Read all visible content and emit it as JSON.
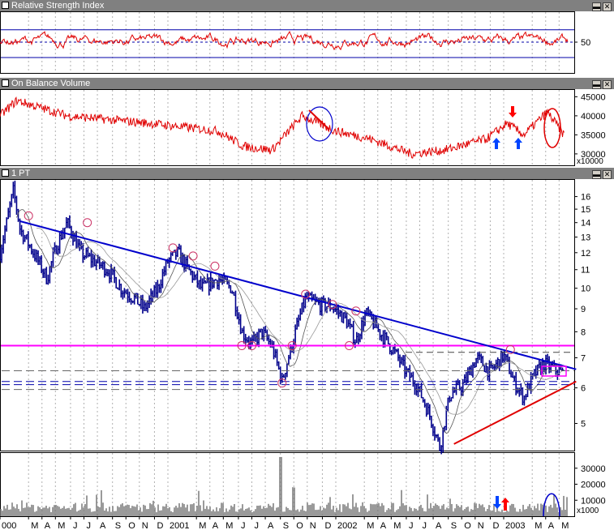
{
  "panels": {
    "rsi": {
      "title": "Relative Strength Index"
    },
    "obv": {
      "title": "On Balance Volume"
    },
    "price": {
      "title": "1 PT"
    }
  },
  "buttons": {
    "minimize": "▬",
    "close": "✕"
  },
  "colors": {
    "price_bar": "#00008b",
    "resistance_trendline": "#0000cc",
    "support_trendline": "#e00000",
    "horizontal_level": "#ff00ff",
    "rsi_line": "#e00000",
    "obv_line": "#e00000",
    "volume_bar": "#808080",
    "arrow_up": "#0044ff",
    "arrow_down": "#ff0000"
  },
  "chart_data": [
    {
      "type": "line",
      "panel": "rsi",
      "title": "Relative Strength Index",
      "y_ticks": [
        "50"
      ],
      "series": [
        {
          "name": "RSI"
        }
      ]
    },
    {
      "type": "line",
      "panel": "obv",
      "title": "On Balance Volume",
      "y_ticks": [
        "45000",
        "40000",
        "35000",
        "30000"
      ],
      "y_unit": "x10000",
      "series": [
        {
          "name": "OBV"
        }
      ]
    },
    {
      "type": "line",
      "panel": "price",
      "title": "1 PT",
      "y_scale": "log",
      "y_ticks": [
        "16",
        "15",
        "14",
        "13",
        "12",
        "11",
        "10",
        "9",
        "8",
        "7",
        "6",
        "5"
      ],
      "resistance_line": {
        "from": [
          0.12,
          14.1
        ],
        "to": [
          2.62,
          6.6
        ]
      },
      "support_line": {
        "from": [
          2.24,
          4.5
        ],
        "to": [
          2.62,
          6.2
        ]
      },
      "horizontal_level": 7.45
    },
    {
      "type": "bar",
      "panel": "volume",
      "y_ticks": [
        "30000",
        "20000",
        "10000"
      ],
      "y_unit": "x1000"
    }
  ],
  "x_axis": {
    "ticks": [
      {
        "label": "000",
        "pos": 0
      },
      {
        "label": "M",
        "pos": 0.17
      },
      {
        "label": "A",
        "pos": 0.25
      },
      {
        "label": "M",
        "pos": 0.33
      },
      {
        "label": "J",
        "pos": 0.42
      },
      {
        "label": "J",
        "pos": 0.5
      },
      {
        "label": "A",
        "pos": 0.58
      },
      {
        "label": "S",
        "pos": 0.67
      },
      {
        "label": "O",
        "pos": 0.75
      },
      {
        "label": "N",
        "pos": 0.83
      },
      {
        "label": "D",
        "pos": 0.92
      },
      {
        "label": "2001",
        "pos": 1.0
      },
      {
        "label": "M",
        "pos": 1.17
      },
      {
        "label": "A",
        "pos": 1.25
      },
      {
        "label": "M",
        "pos": 1.33
      },
      {
        "label": "J",
        "pos": 1.42
      },
      {
        "label": "J",
        "pos": 1.5
      },
      {
        "label": "A",
        "pos": 1.58
      },
      {
        "label": "S",
        "pos": 1.67
      },
      {
        "label": "O",
        "pos": 1.75
      },
      {
        "label": "N",
        "pos": 1.83
      },
      {
        "label": "D",
        "pos": 1.92
      },
      {
        "label": "2002",
        "pos": 2.0
      },
      {
        "label": "M",
        "pos": 2.17
      },
      {
        "label": "A",
        "pos": 2.25
      },
      {
        "label": "M",
        "pos": 2.33
      },
      {
        "label": "J",
        "pos": 2.42
      },
      {
        "label": "J",
        "pos": 2.5
      },
      {
        "label": "A",
        "pos": 2.58
      },
      {
        "label": "S",
        "pos": 2.67
      },
      {
        "label": "O",
        "pos": 2.75
      },
      {
        "label": "N",
        "pos": 2.83
      },
      {
        "label": "D",
        "pos": 2.92
      },
      {
        "label": "2003",
        "pos": 3.0
      },
      {
        "label": "M",
        "pos": 3.17
      },
      {
        "label": "A",
        "pos": 3.25
      },
      {
        "label": "M",
        "pos": 3.33
      }
    ]
  }
}
